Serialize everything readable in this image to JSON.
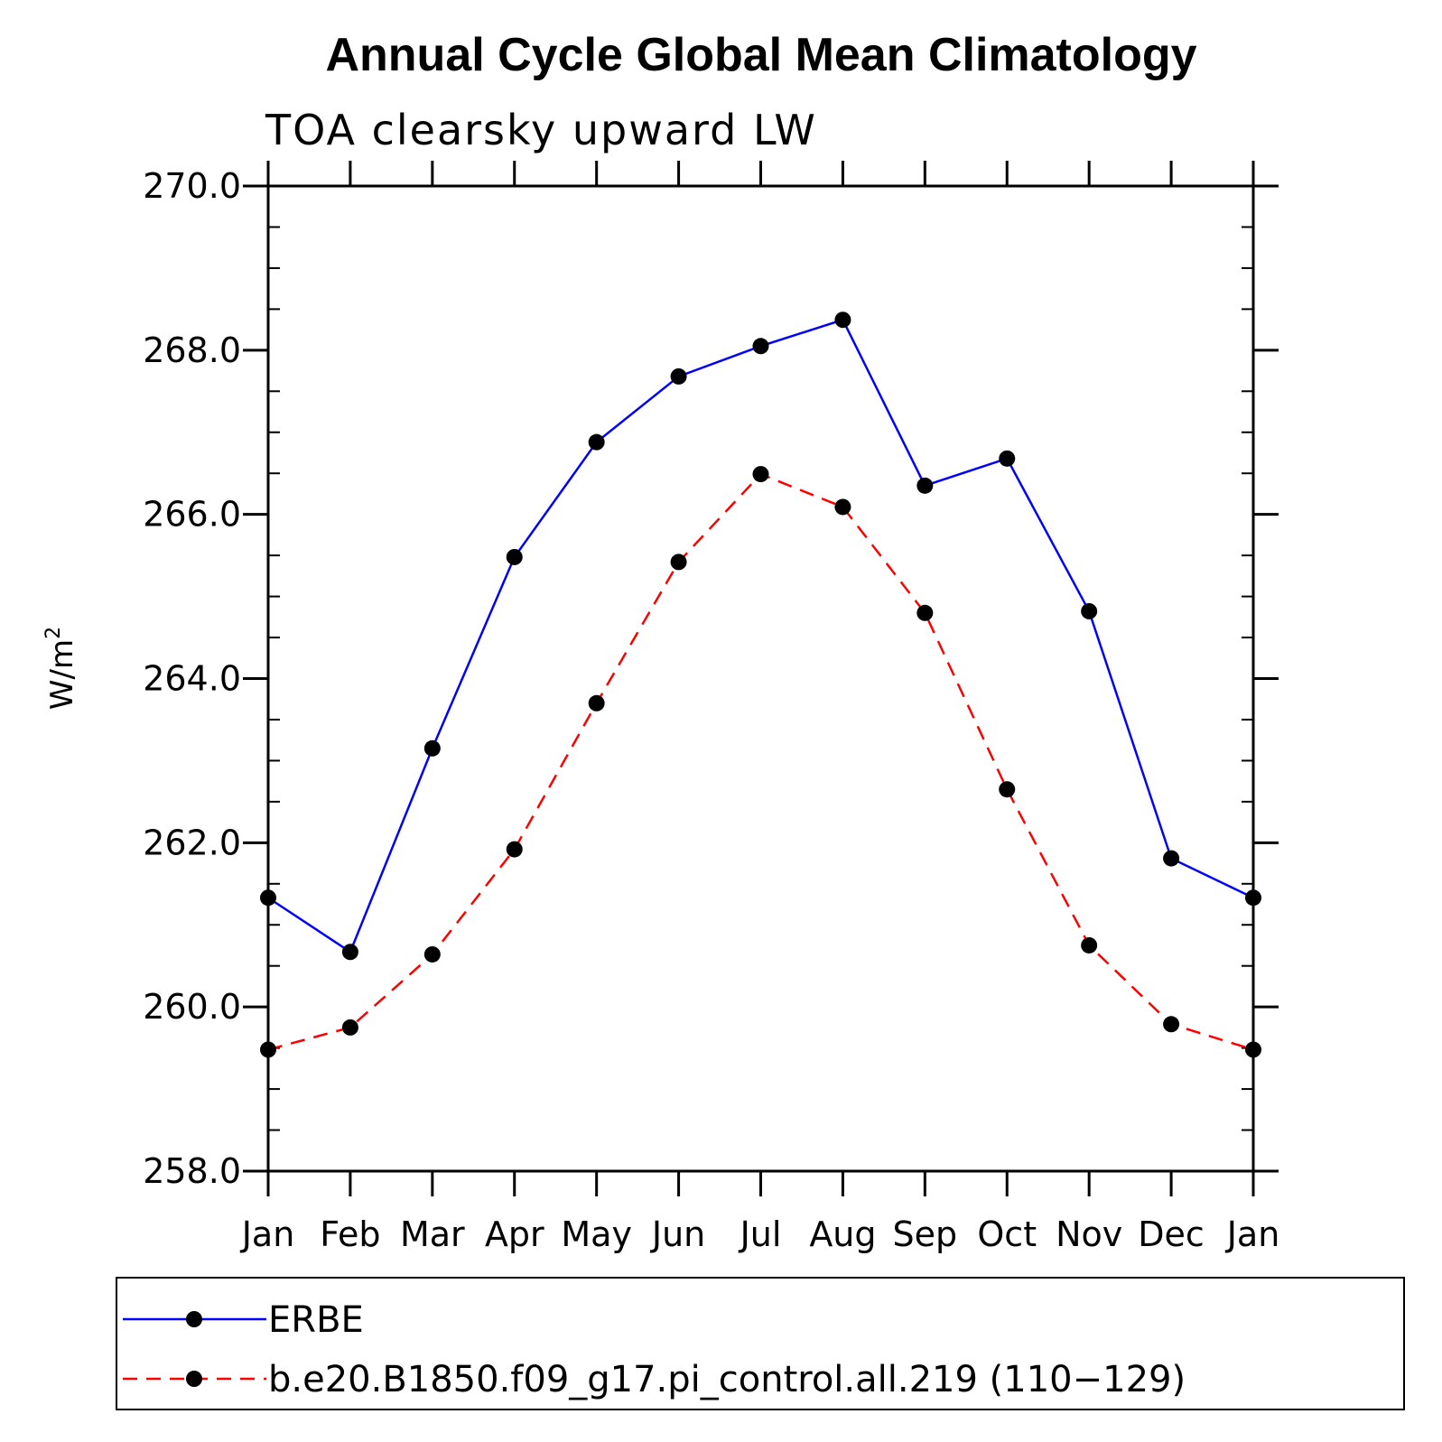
{
  "chart_data": {
    "type": "line",
    "title": "Annual Cycle Global Mean Climatology",
    "subtitle": "TOA clearsky upward LW",
    "ylabel": "W/m",
    "ylabel_superscript": "2",
    "xlabel": "",
    "ylim": [
      258.0,
      270.0
    ],
    "y_ticks": [
      "258.0",
      "260.0",
      "262.0",
      "264.0",
      "266.0",
      "268.0",
      "270.0"
    ],
    "categories": [
      "Jan",
      "Feb",
      "Mar",
      "Apr",
      "May",
      "Jun",
      "Jul",
      "Aug",
      "Sep",
      "Oct",
      "Nov",
      "Dec",
      "Jan"
    ],
    "grid": false,
    "legend_position": "bottom",
    "series": [
      {
        "name": "ERBE",
        "color": "#0000ff",
        "line_style": "solid",
        "marker": "filled-circle",
        "values": [
          261.33,
          260.67,
          263.15,
          265.48,
          266.88,
          267.68,
          268.05,
          268.37,
          266.35,
          266.68,
          264.82,
          261.81,
          261.33
        ]
      },
      {
        "name": "b.e20.B1850.f09_g17.pi_control.all.219 (110−129)",
        "color": "#ff0000",
        "line_style": "dashed",
        "marker": "filled-circle",
        "values": [
          259.48,
          259.75,
          260.64,
          261.92,
          263.7,
          265.42,
          266.49,
          266.09,
          264.8,
          262.65,
          260.75,
          259.79,
          259.48
        ]
      }
    ]
  }
}
